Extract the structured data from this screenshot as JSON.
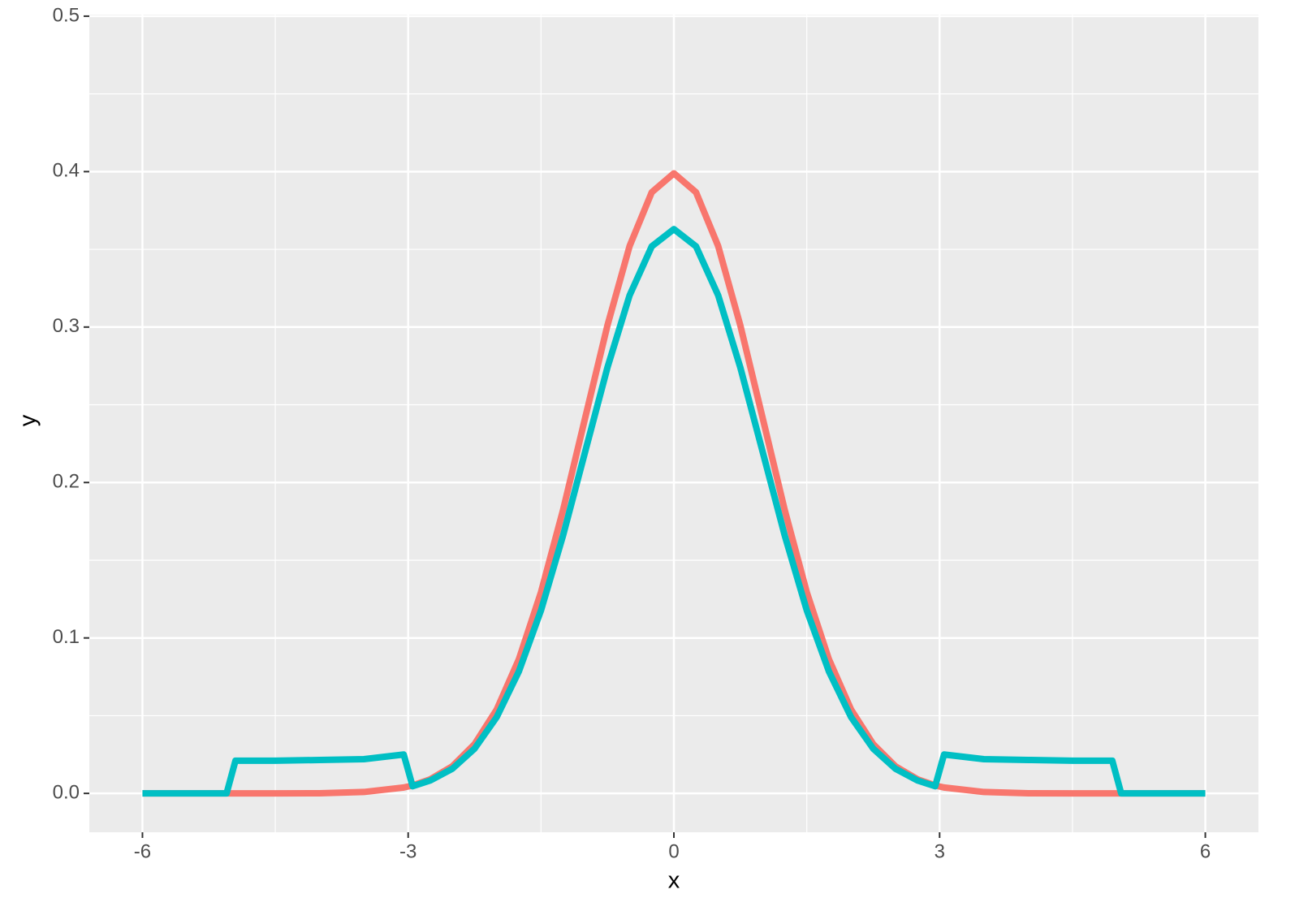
{
  "chart_data": {
    "type": "line",
    "x_label": "x",
    "y_label": "y",
    "x": [
      -6,
      -5.5,
      -5.05,
      -4.95,
      -4.5,
      -4,
      -3.5,
      -3.05,
      -2.95,
      -2.75,
      -2.5,
      -2.25,
      -2,
      -1.75,
      -1.5,
      -1.25,
      -1,
      -0.75,
      -0.5,
      -0.25,
      0,
      0.25,
      0.5,
      0.75,
      1,
      1.25,
      1.5,
      1.75,
      2,
      2.25,
      2.5,
      2.75,
      2.95,
      3.05,
      3.5,
      4,
      4.5,
      4.95,
      5.05,
      5.5,
      6
    ],
    "series": [
      {
        "color": "#F8766D",
        "values": [
          0,
          0,
          0,
          0,
          0,
          0.0001,
          0.0009,
          0.0038,
          0.0051,
          0.0091,
          0.0175,
          0.0317,
          0.054,
          0.0863,
          0.1295,
          0.1826,
          0.242,
          0.3011,
          0.3521,
          0.3867,
          0.3989,
          0.3867,
          0.3521,
          0.3011,
          0.242,
          0.1826,
          0.1295,
          0.0863,
          0.054,
          0.0317,
          0.0175,
          0.0091,
          0.0051,
          0.0038,
          0.0009,
          0.0001,
          0,
          0,
          0,
          0,
          0
        ]
      },
      {
        "color": "#00BFC4",
        "values": [
          0,
          0,
          0,
          0.021,
          0.021,
          0.0215,
          0.022,
          0.025,
          0.0046,
          0.0083,
          0.0159,
          0.0288,
          0.0491,
          0.0785,
          0.1178,
          0.1662,
          0.2202,
          0.274,
          0.3204,
          0.3519,
          0.363,
          0.3519,
          0.3204,
          0.274,
          0.2202,
          0.1662,
          0.1178,
          0.0785,
          0.0491,
          0.0288,
          0.0159,
          0.0083,
          0.0046,
          0.025,
          0.022,
          0.0215,
          0.021,
          0.021,
          0,
          0,
          0
        ]
      }
    ],
    "xlim": [
      -6.6,
      6.6
    ],
    "ylim": [
      -0.025,
      0.501
    ],
    "xticks": [
      -6,
      -3,
      0,
      3,
      6
    ],
    "yticks": [
      {
        "value": 0,
        "label": "0.0"
      },
      0.1,
      0.2,
      0.3,
      0.4,
      0.5
    ],
    "grid": true
  }
}
